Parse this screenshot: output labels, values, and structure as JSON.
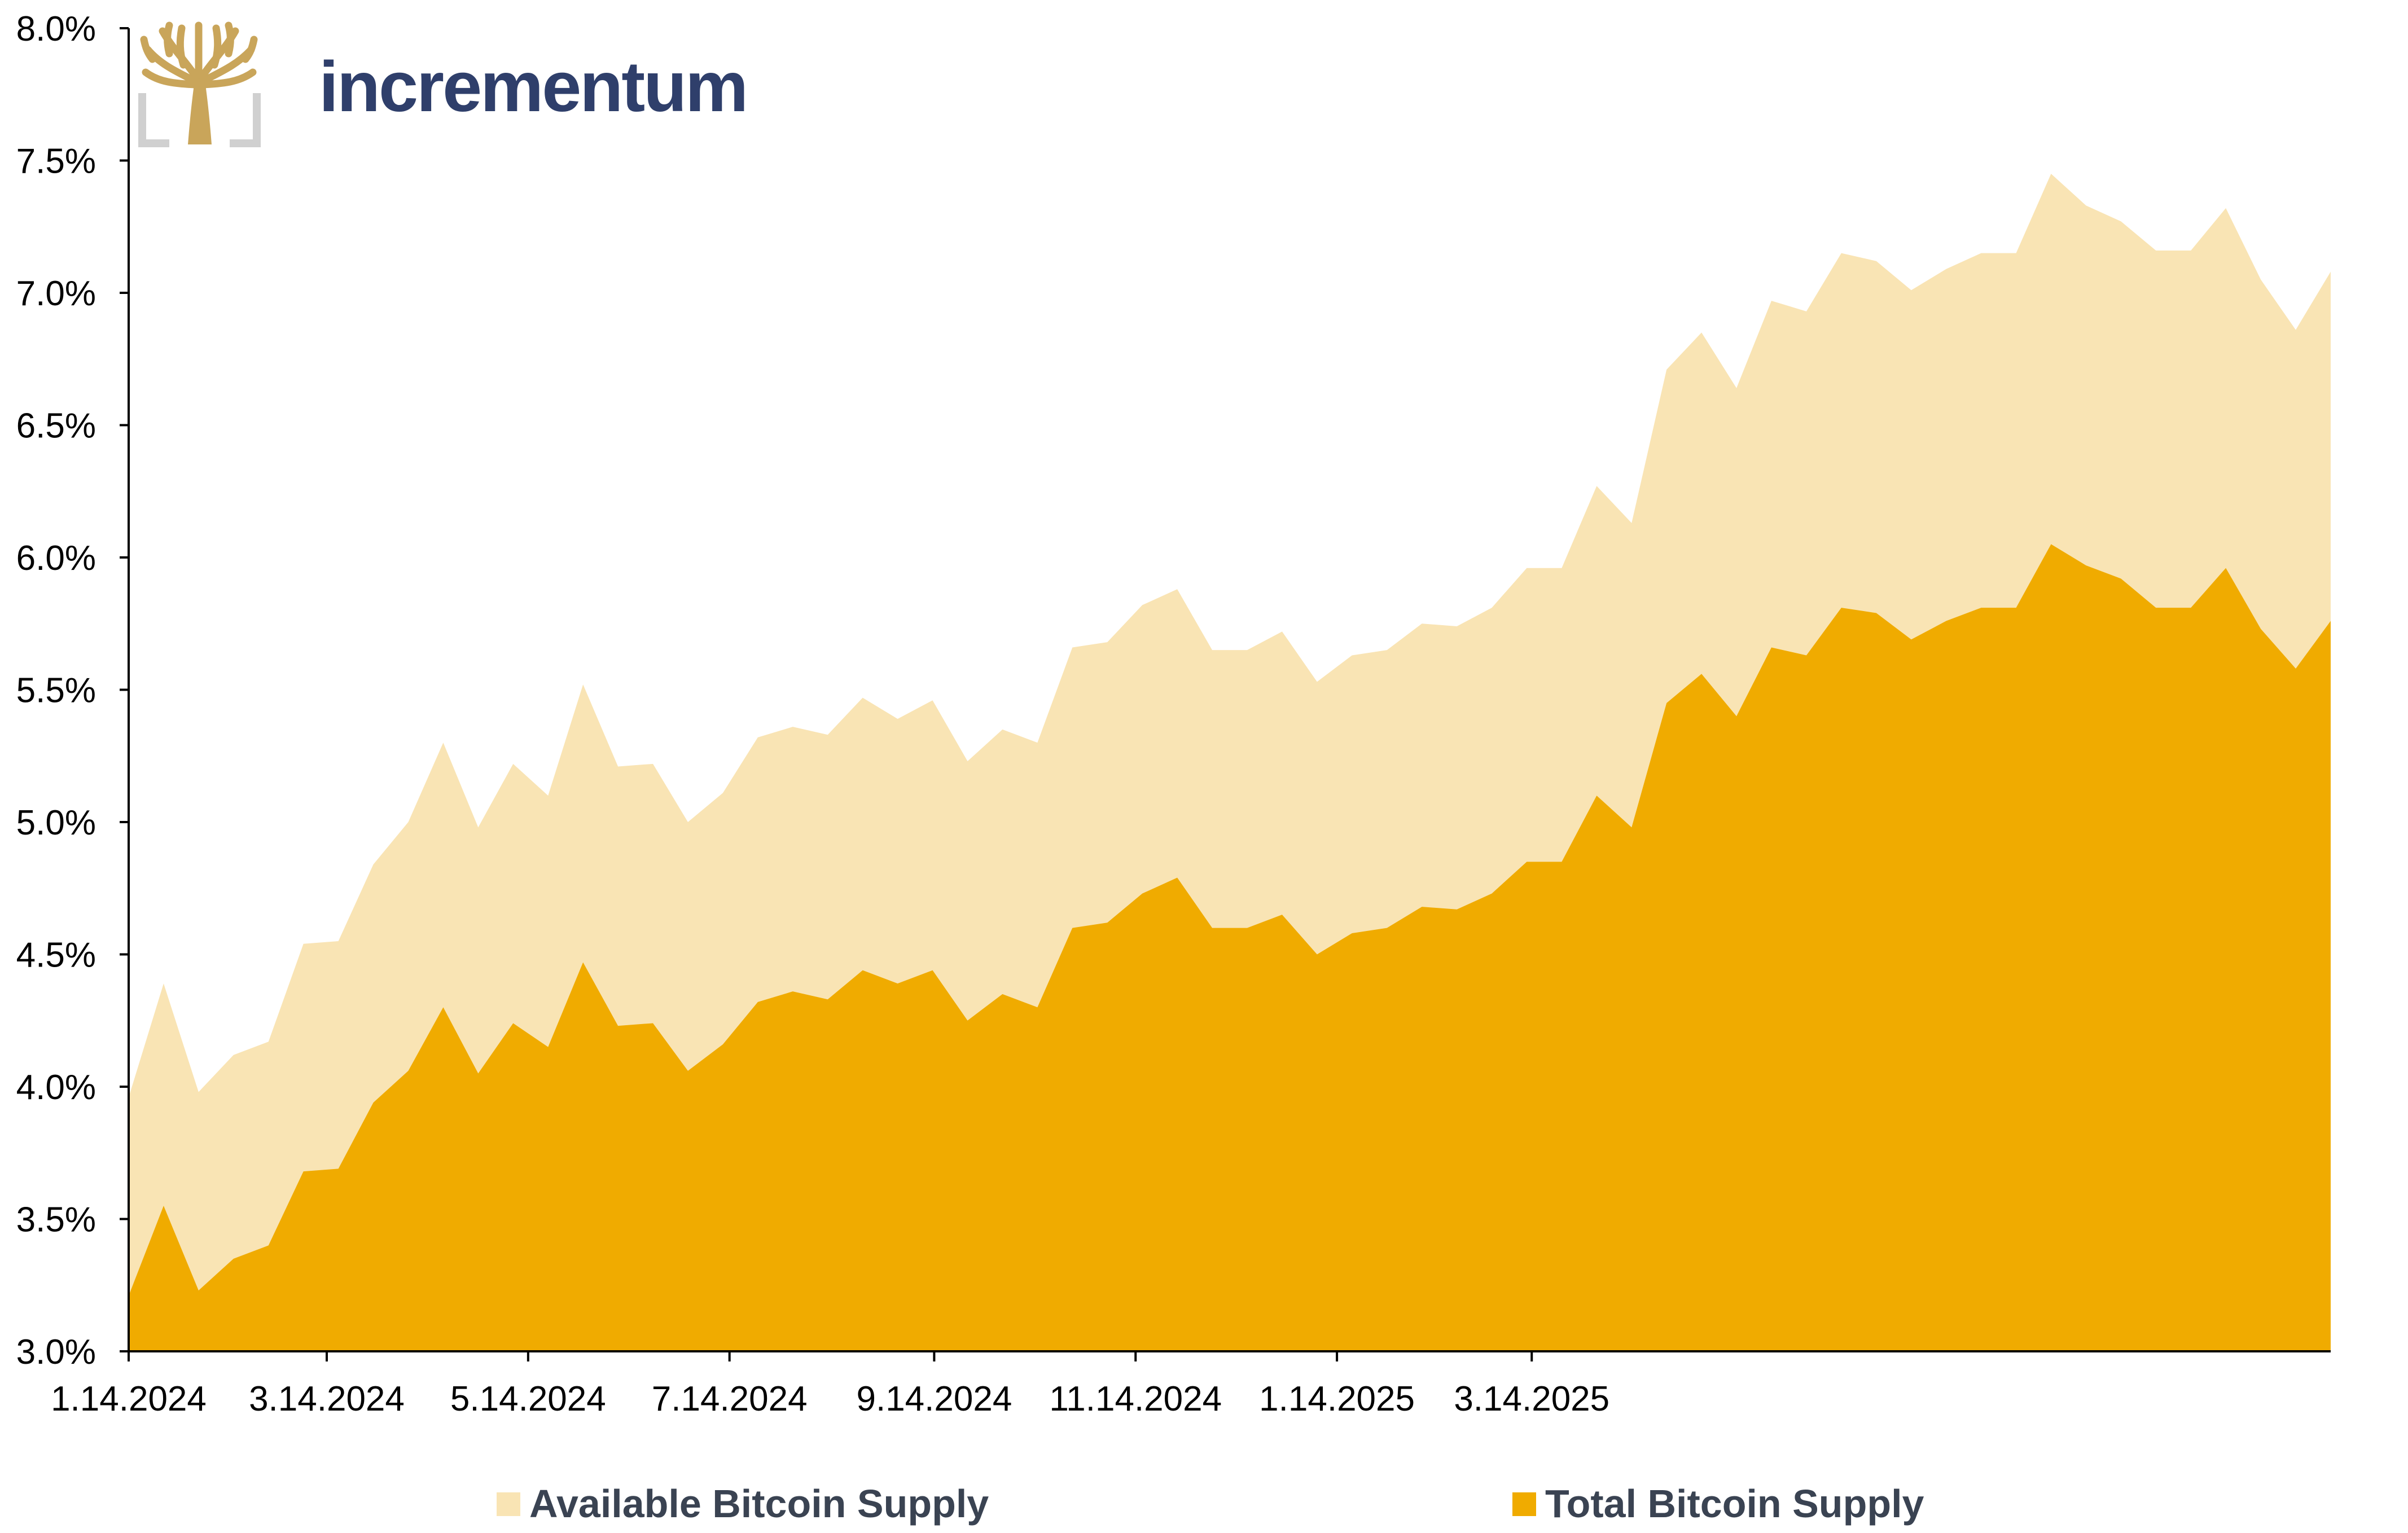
{
  "brand": {
    "name": "incrementum",
    "logo_icon": "tree-logo-icon"
  },
  "colors": {
    "available": "#f9e4b4",
    "total": "#f0ab00",
    "axis": "#000000",
    "brand_text": "#2f3f6b",
    "logo_gold": "#c9a55a",
    "logo_frame": "#d0d0d0",
    "legend_text": "#3a4352"
  },
  "chart_data": {
    "type": "area",
    "title": "",
    "xlabel": "",
    "ylabel": "",
    "ylim": [
      3.0,
      8.0
    ],
    "y_ticks": [
      3.0,
      3.5,
      4.0,
      4.5,
      5.0,
      5.5,
      6.0,
      6.5,
      7.0,
      7.5,
      8.0
    ],
    "y_tick_labels": [
      "3.0%",
      "3.5%",
      "4.0%",
      "4.5%",
      "5.0%",
      "5.5%",
      "6.0%",
      "6.5%",
      "7.0%",
      "7.5%",
      "8.0%"
    ],
    "x_tick_labels": [
      "1.14.2024",
      "3.14.2024",
      "5.14.2024",
      "7.14.2024",
      "9.14.2024",
      "11.14.2024",
      "1.14.2025",
      "3.14.2025"
    ],
    "grid": false,
    "stacked": false,
    "legend_position": "bottom",
    "series": [
      {
        "name": "Available Bitcoin Supply",
        "color": "#f9e4b4",
        "values": [
          3.96,
          4.39,
          3.98,
          4.12,
          4.17,
          4.54,
          4.55,
          4.84,
          5.0,
          5.3,
          4.98,
          5.22,
          5.1,
          5.52,
          5.21,
          5.22,
          5.0,
          5.11,
          5.32,
          5.36,
          5.33,
          5.47,
          5.39,
          5.46,
          5.23,
          5.35,
          5.3,
          5.66,
          5.68,
          5.82,
          5.88,
          5.65,
          5.65,
          5.72,
          5.53,
          5.63,
          5.65,
          5.75,
          5.74,
          5.81,
          5.96,
          5.96,
          6.27,
          6.13,
          6.71,
          6.85,
          6.64,
          6.97,
          6.93,
          7.15,
          7.12,
          7.01,
          7.09,
          7.15,
          7.15,
          7.45,
          7.33,
          7.27,
          7.16,
          7.16,
          7.32,
          7.05,
          6.86,
          7.08
        ]
      },
      {
        "name": "Total Bitcoin Supply",
        "color": "#f0ab00",
        "values": [
          3.21,
          3.55,
          3.23,
          3.35,
          3.4,
          3.68,
          3.69,
          3.94,
          4.06,
          4.3,
          4.05,
          4.24,
          4.15,
          4.47,
          4.23,
          4.24,
          4.06,
          4.16,
          4.32,
          4.36,
          4.33,
          4.44,
          4.39,
          4.44,
          4.25,
          4.35,
          4.3,
          4.6,
          4.62,
          4.73,
          4.79,
          4.6,
          4.6,
          4.65,
          4.5,
          4.58,
          4.6,
          4.68,
          4.67,
          4.73,
          4.85,
          4.85,
          5.1,
          4.98,
          5.45,
          5.56,
          5.4,
          5.66,
          5.63,
          5.81,
          5.79,
          5.69,
          5.76,
          5.81,
          5.81,
          6.05,
          5.97,
          5.92,
          5.81,
          5.81,
          5.96,
          5.73,
          5.58,
          5.76
        ]
      }
    ]
  }
}
